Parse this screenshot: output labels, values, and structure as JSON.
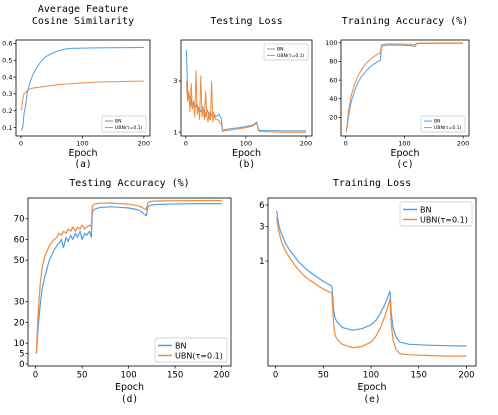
{
  "colors": {
    "bn": "#4d9fe8",
    "ubn": "#f08a3c"
  },
  "chart_data": [
    {
      "id": "a",
      "type": "line",
      "title": "Average Feature\nCosine Similarity",
      "xlabel": "Epoch",
      "sublabel": "(a)",
      "xlim": [
        -8,
        210
      ],
      "ylim": [
        0.05,
        0.62
      ],
      "xticks": [
        0,
        100,
        200
      ],
      "yticks": [
        0.1,
        0.2,
        0.3,
        0.4,
        0.5,
        0.6
      ],
      "ytick_labels": [
        "0.1",
        "0.2",
        "0.3",
        "0.4",
        "0.5",
        "0.6"
      ],
      "legend": "bottom-right",
      "series": [
        {
          "name": "BN",
          "color": "bn",
          "x": [
            1,
            3,
            5,
            8,
            10,
            15,
            20,
            25,
            30,
            35,
            40,
            50,
            60,
            70,
            80,
            100,
            120,
            150,
            180,
            200
          ],
          "y": [
            0.08,
            0.1,
            0.18,
            0.24,
            0.3,
            0.37,
            0.42,
            0.45,
            0.48,
            0.5,
            0.52,
            0.54,
            0.555,
            0.565,
            0.57,
            0.572,
            0.573,
            0.574,
            0.575,
            0.576
          ]
        },
        {
          "name": "UBN(τ=0.1)",
          "color": "ubn",
          "x": [
            1,
            3,
            5,
            8,
            10,
            15,
            20,
            30,
            40,
            50,
            60,
            80,
            100,
            120,
            150,
            180,
            200
          ],
          "y": [
            0.2,
            0.27,
            0.3,
            0.31,
            0.32,
            0.33,
            0.335,
            0.34,
            0.345,
            0.35,
            0.355,
            0.36,
            0.365,
            0.37,
            0.372,
            0.375,
            0.376
          ]
        }
      ]
    },
    {
      "id": "b",
      "type": "line",
      "title": "Testing Loss",
      "xlabel": "Epoch",
      "sublabel": "(b)",
      "xlim": [
        -8,
        210
      ],
      "ylim": [
        0.85,
        4.6
      ],
      "xticks": [
        0,
        100,
        200
      ],
      "yticks": [
        1,
        3
      ],
      "ytick_labels": [
        "1",
        "3"
      ],
      "legend": "top-right",
      "series": [
        {
          "name": "BN",
          "color": "bn",
          "x": [
            1,
            3,
            5,
            8,
            10,
            13,
            15,
            18,
            20,
            23,
            25,
            28,
            30,
            33,
            35,
            38,
            40,
            43,
            45,
            50,
            55,
            59,
            61,
            65,
            70,
            80,
            90,
            100,
            110,
            115,
            118,
            121,
            125,
            140,
            160,
            180,
            200
          ],
          "y": [
            4.2,
            2.6,
            2.3,
            2.4,
            2.0,
            2.2,
            1.9,
            2.1,
            2.0,
            1.9,
            1.8,
            2.0,
            1.9,
            1.6,
            1.9,
            1.7,
            1.5,
            1.7,
            1.8,
            1.6,
            1.7,
            1.55,
            1.08,
            1.1,
            1.12,
            1.15,
            1.18,
            1.22,
            1.27,
            1.33,
            1.4,
            1.1,
            1.07,
            1.06,
            1.05,
            1.05,
            1.05
          ]
        },
        {
          "name": "UBN(τ=0.1)",
          "color": "ubn",
          "x": [
            1,
            3,
            5,
            7,
            9,
            11,
            13,
            15,
            17,
            19,
            21,
            23,
            25,
            27,
            29,
            31,
            33,
            35,
            37,
            39,
            41,
            43,
            45,
            47,
            49,
            52,
            55,
            59,
            61,
            65,
            70,
            80,
            90,
            100,
            110,
            115,
            118,
            121,
            125,
            140,
            160,
            180,
            200
          ],
          "y": [
            3.0,
            2.2,
            2.6,
            1.8,
            2.9,
            1.9,
            2.2,
            1.6,
            3.4,
            1.7,
            2.0,
            1.5,
            3.2,
            1.6,
            1.9,
            1.5,
            2.6,
            1.6,
            1.4,
            1.8,
            1.5,
            3.0,
            1.4,
            1.7,
            1.5,
            1.5,
            1.45,
            1.3,
            1.02,
            1.05,
            1.07,
            1.1,
            1.14,
            1.18,
            1.23,
            1.3,
            1.36,
            1.05,
            1.02,
            1.01,
            1.0,
            1.0,
            1.0
          ]
        }
      ]
    },
    {
      "id": "c",
      "type": "line",
      "title": "Training Accuracy (%)",
      "xlabel": "Epoch",
      "sublabel": "(c)",
      "xlim": [
        -8,
        210
      ],
      "ylim": [
        0,
        103
      ],
      "xticks": [
        0,
        100,
        200
      ],
      "yticks": [
        20,
        40,
        60,
        80,
        100
      ],
      "ytick_labels": [
        "20",
        "40",
        "60",
        "80",
        "100"
      ],
      "legend": "bottom-right",
      "series": [
        {
          "name": "BN",
          "color": "bn",
          "x": [
            1,
            3,
            5,
            8,
            10,
            15,
            20,
            25,
            30,
            35,
            40,
            45,
            50,
            55,
            59,
            61,
            65,
            70,
            80,
            90,
            100,
            110,
            115,
            118,
            121,
            125,
            140,
            160,
            180,
            200
          ],
          "y": [
            4,
            12,
            22,
            32,
            38,
            48,
            56,
            62,
            66,
            70,
            73,
            76,
            78,
            80,
            81,
            96,
            97,
            97.5,
            97.6,
            97.5,
            97.3,
            97,
            96.5,
            96,
            99,
            99.2,
            99.3,
            99.4,
            99.4,
            99.4
          ]
        },
        {
          "name": "UBN(τ=0.1)",
          "color": "ubn",
          "x": [
            1,
            3,
            5,
            8,
            10,
            15,
            20,
            25,
            30,
            35,
            40,
            45,
            50,
            55,
            59,
            61,
            65,
            70,
            80,
            90,
            100,
            110,
            115,
            118,
            121,
            125,
            140,
            160,
            180,
            200
          ],
          "y": [
            5,
            16,
            28,
            38,
            45,
            55,
            63,
            69,
            74,
            78,
            81,
            84,
            86,
            88,
            89,
            98,
            98.5,
            98.8,
            98.8,
            98.7,
            98.6,
            98.4,
            98.2,
            98,
            99.6,
            99.7,
            99.8,
            99.8,
            99.8,
            99.8
          ]
        }
      ]
    },
    {
      "id": "d",
      "type": "line",
      "title": "Testing Accuracy (%)",
      "xlabel": "Epoch",
      "sublabel": "(d)",
      "xlim": [
        -8,
        210
      ],
      "ylim": [
        -1,
        80
      ],
      "xticks": [
        0,
        50,
        100,
        150,
        200
      ],
      "yticks": [
        0,
        5,
        10,
        20,
        30,
        50,
        60,
        70
      ],
      "ytick_labels": [
        "0",
        "5",
        "10",
        "20",
        "30",
        "50",
        "60",
        "70"
      ],
      "legend": "bottom-right",
      "series": [
        {
          "name": "BN",
          "color": "bn",
          "x": [
            1,
            3,
            5,
            7,
            10,
            13,
            15,
            18,
            20,
            23,
            25,
            28,
            30,
            33,
            35,
            38,
            40,
            43,
            45,
            48,
            50,
            53,
            55,
            58,
            60,
            61,
            63,
            66,
            70,
            75,
            80,
            90,
            100,
            108,
            112,
            116,
            119,
            121,
            124,
            128,
            140,
            160,
            180,
            200
          ],
          "y": [
            5,
            18,
            28,
            36,
            42,
            47,
            50,
            53,
            55,
            57,
            58,
            60,
            56,
            61,
            59,
            62,
            60,
            63,
            61,
            64,
            60,
            63,
            62,
            64,
            61,
            73,
            74.5,
            75,
            75.5,
            75.5,
            75.8,
            75.5,
            75.2,
            74.5,
            74,
            72.5,
            71.5,
            76,
            76.5,
            76.8,
            77,
            77.2,
            77.3,
            77.3
          ]
        },
        {
          "name": "UBN(τ=0.1)",
          "color": "ubn",
          "x": [
            1,
            3,
            5,
            7,
            10,
            13,
            15,
            18,
            20,
            23,
            25,
            28,
            30,
            33,
            35,
            38,
            40,
            43,
            45,
            48,
            50,
            53,
            55,
            58,
            60,
            61,
            63,
            66,
            70,
            75,
            80,
            90,
            100,
            108,
            112,
            116,
            119,
            121,
            124,
            128,
            140,
            160,
            180,
            200
          ],
          "y": [
            6,
            25,
            38,
            46,
            52,
            55,
            57,
            59,
            60,
            61,
            63,
            62,
            64,
            63,
            65,
            64,
            66,
            64,
            66,
            65,
            67,
            65,
            66,
            67,
            66,
            76,
            77,
            77.3,
            77.5,
            77.5,
            77.6,
            77.3,
            77,
            76.5,
            76,
            75,
            74.5,
            78,
            78.3,
            78.5,
            78.6,
            78.7,
            78.8,
            78.8
          ]
        }
      ]
    },
    {
      "id": "e",
      "type": "line",
      "title": "Training Loss",
      "xlabel": "Epoch",
      "sublabel": "(e)",
      "xlim": [
        -8,
        210
      ],
      "ylim": [
        0.035,
        7.5
      ],
      "log_y": true,
      "xticks": [
        0,
        50,
        100,
        150,
        200
      ],
      "yticks": [
        1,
        3,
        6
      ],
      "ytick_labels": [
        "1",
        "3",
        "6"
      ],
      "legend": "top-right",
      "series": [
        {
          "name": "BN",
          "color": "bn",
          "x": [
            1,
            3,
            5,
            8,
            10,
            15,
            20,
            25,
            30,
            35,
            40,
            45,
            50,
            55,
            59,
            60,
            61,
            62,
            63,
            65,
            70,
            80,
            90,
            100,
            105,
            110,
            115,
            118,
            120,
            121,
            123,
            126,
            130,
            140,
            160,
            180,
            200
          ],
          "y": [
            5.0,
            3.3,
            2.6,
            2.1,
            1.8,
            1.4,
            1.15,
            0.95,
            0.82,
            0.72,
            0.64,
            0.58,
            0.52,
            0.48,
            0.45,
            0.3,
            0.2,
            0.17,
            0.155,
            0.14,
            0.12,
            0.11,
            0.115,
            0.13,
            0.15,
            0.19,
            0.26,
            0.33,
            0.38,
            0.2,
            0.12,
            0.09,
            0.075,
            0.07,
            0.068,
            0.067,
            0.066
          ]
        },
        {
          "name": "UBN(τ=0.1)",
          "color": "ubn",
          "x": [
            1,
            3,
            5,
            8,
            10,
            15,
            20,
            25,
            30,
            35,
            40,
            45,
            50,
            55,
            59,
            60,
            61,
            62,
            63,
            65,
            70,
            80,
            90,
            100,
            105,
            110,
            115,
            118,
            120,
            121,
            123,
            126,
            130,
            140,
            160,
            180,
            200
          ],
          "y": [
            4.0,
            2.7,
            2.1,
            1.6,
            1.4,
            1.1,
            0.88,
            0.73,
            0.62,
            0.55,
            0.5,
            0.45,
            0.41,
            0.38,
            0.36,
            0.2,
            0.13,
            0.1,
            0.09,
            0.08,
            0.07,
            0.063,
            0.065,
            0.075,
            0.09,
            0.12,
            0.18,
            0.24,
            0.3,
            0.14,
            0.08,
            0.06,
            0.052,
            0.05,
            0.049,
            0.048,
            0.048
          ]
        }
      ]
    }
  ]
}
